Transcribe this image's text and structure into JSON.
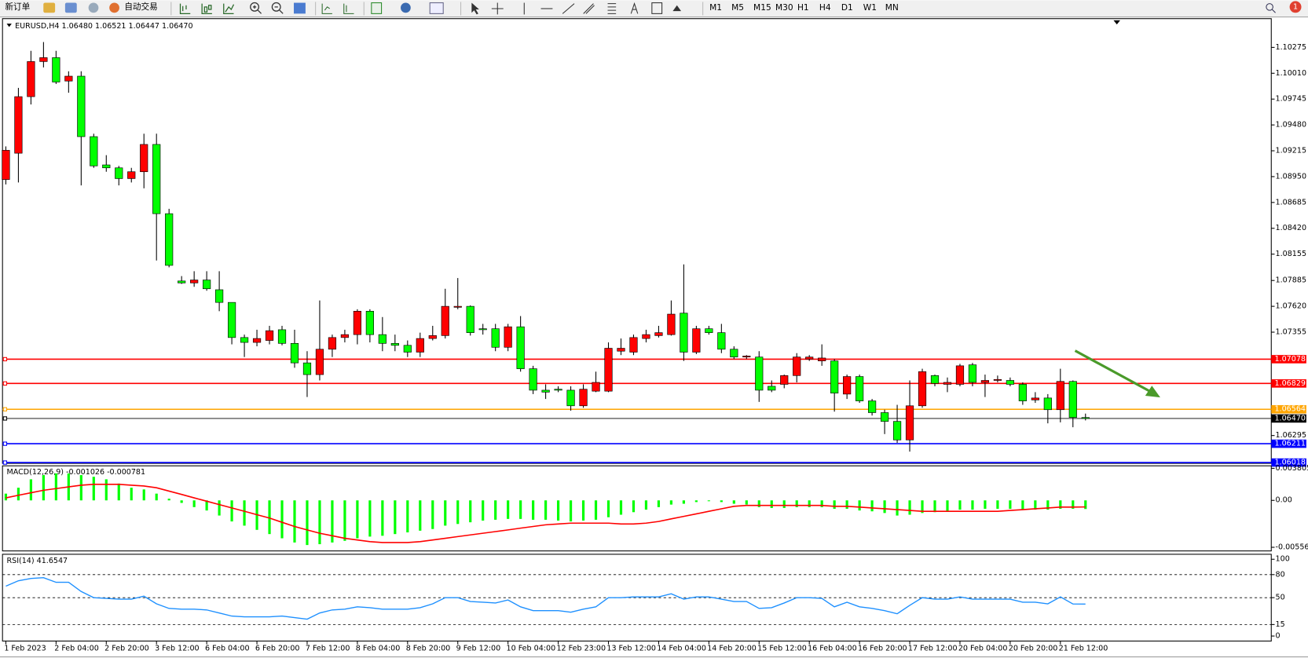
{
  "toolbar": {
    "new_order": "新订单",
    "auto_trading": "自动交易",
    "timeframes": [
      "M1",
      "M5",
      "M15",
      "M30",
      "H1",
      "H4",
      "D1",
      "W1",
      "MN"
    ],
    "badge": 1
  },
  "chart_data": [
    {
      "type": "candlestick",
      "title": "EURUSD,H4  1.06480 1.06521 1.06447 1.06470",
      "up_color": "#ff0000",
      "down_color": "#00ff00",
      "categories": [
        "1 Feb 2023",
        null,
        null,
        null,
        "2 Feb 04:00",
        null,
        null,
        null,
        "2 Feb 20:00",
        null,
        null,
        null,
        "3 Feb 12:00",
        null,
        null,
        null,
        "6 Feb 04:00",
        null,
        null,
        null,
        "6 Feb 20:00",
        null,
        null,
        null,
        "7 Feb 12:00",
        null,
        null,
        null,
        "8 Feb 04:00",
        null,
        null,
        null,
        "8 Feb 20:00",
        null,
        null,
        null,
        "9 Feb 12:00",
        null,
        null,
        null,
        "10 Feb 04:00",
        null,
        null,
        null,
        "12 Feb 23:00",
        null,
        null,
        null,
        "13 Feb 12:00",
        null,
        null,
        null,
        "14 Feb 04:00",
        null,
        null,
        null,
        "14 Feb 20:00",
        null,
        null,
        null,
        "15 Feb 12:00",
        null,
        null,
        null,
        "16 Feb 04:00",
        null,
        null,
        null,
        "16 Feb 20:00",
        null,
        null,
        null,
        "17 Feb 12:00",
        null,
        null,
        null,
        "20 Feb 04:00",
        null,
        null,
        null,
        "20 Feb 20:00",
        null,
        null,
        null,
        "21 Feb 12:00",
        null,
        null
      ],
      "open": [
        1.0892,
        1.0919,
        1.0977,
        1.1013,
        1.1017,
        1.0993,
        1.0998,
        1.0936,
        1.0907,
        1.0904,
        1.0893,
        1.09,
        1.0928,
        1.0857,
        1.0788,
        1.0786,
        1.0789,
        1.0779,
        1.0766,
        1.073,
        1.0725,
        1.0727,
        1.0738,
        1.0724,
        1.0704,
        1.0692,
        1.0718,
        1.073,
        1.0733,
        1.0757,
        1.0733,
        1.0724,
        1.0722,
        1.0715,
        1.0729,
        1.0732,
        1.0761,
        1.0762,
        1.0739,
        1.0739,
        1.072,
        1.0741,
        1.0698,
        1.0676,
        1.0677,
        1.0676,
        1.066,
        1.0675,
        1.0675,
        1.0716,
        1.0715,
        1.0729,
        1.0732,
        1.0733,
        1.0755,
        1.0715,
        1.0739,
        1.0735,
        1.0718,
        1.071,
        1.071,
        1.068,
        1.0682,
        1.0691,
        1.0708,
        1.0706,
        1.0706,
        1.0672,
        1.069,
        1.0665,
        1.0653,
        1.0644,
        1.0625,
        1.066,
        1.0691,
        1.0682,
        1.0682,
        1.0702,
        1.0684,
        1.0686,
        1.0686,
        1.0682,
        1.0666,
        1.0668,
        1.0656,
        1.0685,
        1.0648
      ],
      "high": [
        1.0926,
        1.0986,
        1.1024,
        1.1033,
        1.1024,
        1.1003,
        1.1003,
        1.0939,
        1.0917,
        1.0906,
        1.0904,
        1.0939,
        1.0939,
        1.0862,
        1.0793,
        1.0798,
        1.0798,
        1.0798,
        1.0766,
        1.0733,
        1.0738,
        1.0742,
        1.0742,
        1.0738,
        1.0716,
        1.0768,
        1.0733,
        1.0738,
        1.0759,
        1.0759,
        1.0751,
        1.0733,
        1.0727,
        1.0735,
        1.0742,
        1.078,
        1.0791,
        1.0763,
        1.0744,
        1.0744,
        1.0744,
        1.0752,
        1.0701,
        1.0682,
        1.068,
        1.068,
        1.0682,
        1.0695,
        1.0725,
        1.0729,
        1.0733,
        1.0738,
        1.0742,
        1.0768,
        1.0805,
        1.0742,
        1.0742,
        1.0744,
        1.0721,
        1.0712,
        1.0716,
        1.0686,
        1.0692,
        1.0714,
        1.0712,
        1.0723,
        1.0708,
        1.0692,
        1.0692,
        1.0667,
        1.0656,
        1.0661,
        1.0686,
        1.0698,
        1.0692,
        1.0689,
        1.0703,
        1.0704,
        1.0692,
        1.0691,
        1.0689,
        1.0684,
        1.0674,
        1.0672,
        1.0698,
        1.0686,
        1.0652
      ],
      "low": [
        1.0887,
        1.0889,
        1.0969,
        1.1007,
        1.099,
        1.0981,
        1.0886,
        1.0904,
        1.09,
        1.0886,
        1.0889,
        1.0883,
        1.0809,
        1.0802,
        1.0785,
        1.0782,
        1.0778,
        1.0757,
        1.0723,
        1.071,
        1.0721,
        1.0723,
        1.0722,
        1.0699,
        1.0669,
        1.0686,
        1.071,
        1.0725,
        1.0723,
        1.0725,
        1.0716,
        1.0716,
        1.071,
        1.071,
        1.0727,
        1.0729,
        1.0759,
        1.0732,
        1.0733,
        1.0716,
        1.0716,
        1.0695,
        1.0672,
        1.0667,
        1.0674,
        1.0655,
        1.0658,
        1.0674,
        1.0674,
        1.0712,
        1.0712,
        1.0725,
        1.073,
        1.0732,
        1.0706,
        1.0713,
        1.0733,
        1.0714,
        1.0708,
        1.0708,
        1.0664,
        1.0674,
        1.0678,
        1.0684,
        1.0706,
        1.0701,
        1.0654,
        1.0667,
        1.0663,
        1.065,
        1.0631,
        1.0622,
        1.0613,
        1.0658,
        1.068,
        1.0674,
        1.068,
        1.068,
        1.0669,
        1.0684,
        1.068,
        1.0661,
        1.0663,
        1.0642,
        1.0643,
        1.0638,
        1.0645
      ],
      "close": [
        1.0922,
        1.0977,
        1.1013,
        1.1017,
        1.0992,
        1.0998,
        1.0936,
        1.0906,
        1.0904,
        1.0893,
        1.09,
        1.0928,
        1.0857,
        1.0804,
        1.0786,
        1.0789,
        1.078,
        1.0766,
        1.073,
        1.0725,
        1.0729,
        1.0737,
        1.0724,
        1.0704,
        1.0692,
        1.0718,
        1.073,
        1.0733,
        1.0757,
        1.0733,
        1.0724,
        1.0722,
        1.0715,
        1.0729,
        1.0732,
        1.0762,
        1.0762,
        1.0735,
        1.0738,
        1.072,
        1.0741,
        1.0698,
        1.0676,
        1.0674,
        1.0676,
        1.066,
        1.0677,
        1.0684,
        1.0719,
        1.0719,
        1.073,
        1.0733,
        1.0735,
        1.0754,
        1.0715,
        1.0739,
        1.0735,
        1.0718,
        1.071,
        1.0711,
        1.0676,
        1.0676,
        1.0691,
        1.071,
        1.071,
        1.0709,
        1.0673,
        1.069,
        1.0665,
        1.0653,
        1.0644,
        1.0625,
        1.066,
        1.0695,
        1.0683,
        1.0684,
        1.0701,
        1.0684,
        1.0686,
        1.0687,
        1.0682,
        1.0665,
        1.0668,
        1.0656,
        1.0685,
        1.0648,
        1.0647
      ],
      "ylim": [
        1.0601,
        1.1057
      ],
      "yticks": [
        1.10275,
        {
          "value": 1.1001,
          "label": "1.10010"
        },
        1.09745,
        {
          "value": 1.0948,
          "label": "1.09480"
        },
        1.09215,
        {
          "value": 1.0895,
          "label": "1.08950"
        },
        1.08685,
        {
          "value": 1.0842,
          "label": "1.08420"
        },
        1.08155,
        1.07885,
        {
          "value": 1.0762,
          "label": "1.07620"
        },
        1.07355,
        1.06295
      ],
      "levels": [
        {
          "value": 1.07078,
          "color": "#ff0000"
        },
        {
          "value": 1.06829,
          "color": "#ff0000"
        },
        {
          "value": 1.06564,
          "color": "#ffa500"
        },
        {
          "value": 1.0647,
          "label": "1.06470",
          "color": "#000000"
        },
        {
          "value": 1.06211,
          "color": "#0000ff"
        },
        {
          "value": 1.06018,
          "color": "#0000ff"
        }
      ]
    },
    {
      "type": "macd",
      "title": "MACD(12,26,9) -0.001026 -0.000781",
      "color": "#00ff00",
      "signal_color": "#ff0000",
      "values": [
        0.0008,
        0.0015,
        0.0025,
        0.003,
        0.0032,
        0.0032,
        0.003,
        0.0028,
        0.0025,
        0.002,
        0.0015,
        0.0013,
        0.0008,
        0.0002,
        -0.0003,
        -0.0008,
        -0.0012,
        -0.0018,
        -0.0025,
        -0.003,
        -0.0035,
        -0.004,
        -0.0045,
        -0.005,
        -0.0053,
        -0.0052,
        -0.005,
        -0.0048,
        -0.0045,
        -0.0043,
        -0.0042,
        -0.004,
        -0.0038,
        -0.0036,
        -0.0034,
        -0.003,
        -0.0028,
        -0.0026,
        -0.0024,
        -0.0023,
        -0.0022,
        -0.0022,
        -0.0023,
        -0.0023,
        -0.0024,
        -0.0025,
        -0.0024,
        -0.0023,
        -0.002,
        -0.0017,
        -0.0014,
        -0.0011,
        -0.0008,
        -0.0005,
        -0.0004,
        -0.0002,
        -0.0001,
        -0.0002,
        -0.0004,
        -0.0005,
        -0.0008,
        -0.0009,
        -0.0009,
        -0.0008,
        -0.0008,
        -0.0008,
        -0.001,
        -0.001,
        -0.0012,
        -0.0013,
        -0.0015,
        -0.0018,
        -0.0017,
        -0.0015,
        -0.0014,
        -0.0013,
        -0.0011,
        -0.0011,
        -0.001,
        -0.001,
        -0.001,
        -0.0011,
        -0.0011,
        -0.0011,
        -0.001,
        -0.001,
        -0.001026
      ],
      "signal": [
        0.0003,
        0.0006,
        0.0009,
        0.0012,
        0.0014,
        0.0016,
        0.0018,
        0.0019,
        0.0019,
        0.0019,
        0.0018,
        0.0017,
        0.0015,
        0.0011,
        0.0007,
        0.0003,
        -0.0001,
        -0.0005,
        -0.0009,
        -0.0013,
        -0.0017,
        -0.0021,
        -0.0026,
        -0.0031,
        -0.0035,
        -0.0039,
        -0.0042,
        -0.0045,
        -0.0047,
        -0.0049,
        -0.005,
        -0.005,
        -0.005,
        -0.0049,
        -0.0047,
        -0.0045,
        -0.0043,
        -0.0041,
        -0.0039,
        -0.0037,
        -0.0035,
        -0.0033,
        -0.0031,
        -0.0029,
        -0.0028,
        -0.0027,
        -0.0027,
        -0.0027,
        -0.0027,
        -0.0028,
        -0.0028,
        -0.0027,
        -0.0025,
        -0.0022,
        -0.0019,
        -0.0016,
        -0.0013,
        -0.001,
        -0.0007,
        -0.0006,
        -0.0006,
        -0.0006,
        -0.0006,
        -0.0006,
        -0.0006,
        -0.0006,
        -0.0007,
        -0.0007,
        -0.0008,
        -0.0009,
        -0.001,
        -0.0011,
        -0.0012,
        -0.0013,
        -0.0013,
        -0.0013,
        -0.0013,
        -0.0013,
        -0.0013,
        -0.0013,
        -0.0012,
        -0.0011,
        -0.001,
        -0.0009,
        -0.0008,
        -0.0008,
        -0.000781
      ],
      "ylim": [
        -0.006,
        0.0041
      ],
      "yticks": [
        0.003805,
        {
          "value": 0,
          "label": "0.00"
        },
        -0.005569
      ]
    },
    {
      "type": "line",
      "title": "RSI(14) 41.6547",
      "color": "#1e90ff",
      "values": [
        65,
        72,
        75,
        76,
        70,
        70,
        58,
        50,
        49,
        48,
        48,
        52,
        42,
        36,
        35,
        35,
        34,
        30,
        26,
        25,
        25,
        25,
        26,
        24,
        22,
        30,
        34,
        35,
        38,
        37,
        35,
        35,
        35,
        37,
        42,
        50,
        50,
        45,
        44,
        43,
        47,
        38,
        33,
        33,
        33,
        31,
        35,
        38,
        50,
        50,
        51,
        51,
        51,
        55,
        48,
        51,
        51,
        48,
        45,
        45,
        36,
        37,
        43,
        50,
        50,
        49,
        38,
        44,
        38,
        36,
        33,
        29,
        40,
        50,
        48,
        48,
        51,
        48,
        48,
        48,
        48,
        44,
        44,
        42,
        51,
        41.7,
        41.6547
      ],
      "ylim": [
        -6.5,
        106.5
      ],
      "yticks": [
        100,
        80,
        50,
        15,
        0
      ],
      "levels": [
        80,
        50,
        15
      ]
    }
  ]
}
